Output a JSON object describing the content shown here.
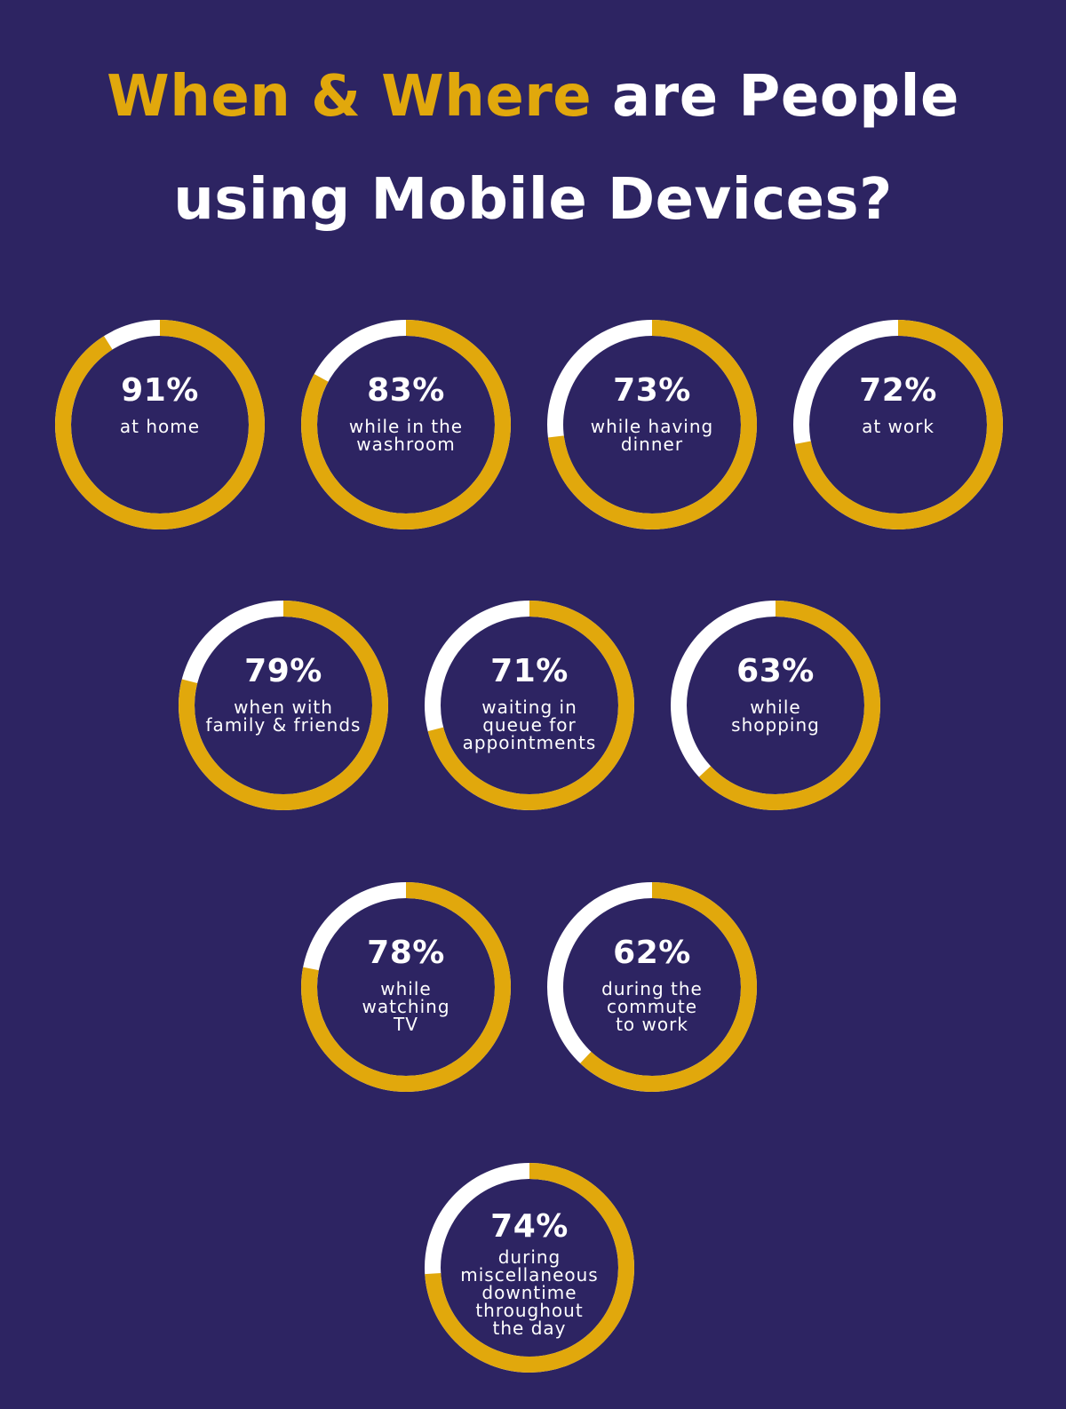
{
  "title": {
    "line1_accent": "When & Where",
    "line1_rest": " are People",
    "line2": "using Mobile Devices?"
  },
  "colors": {
    "background": "#2d2462",
    "accent": "#e1a80c",
    "remainder": "#ffffff"
  },
  "chart_data": {
    "type": "pie",
    "units": "%",
    "items": [
      {
        "value": 91,
        "pct_text": "91%",
        "label": "at home"
      },
      {
        "value": 83,
        "pct_text": "83%",
        "label": "while in the\nwashroom"
      },
      {
        "value": 73,
        "pct_text": "73%",
        "label": "while having\ndinner"
      },
      {
        "value": 72,
        "pct_text": "72%",
        "label": "at work"
      },
      {
        "value": 79,
        "pct_text": "79%",
        "label": "when with\nfamily & friends"
      },
      {
        "value": 71,
        "pct_text": "71%",
        "label": "waiting in\nqueue for\nappointments"
      },
      {
        "value": 63,
        "pct_text": "63%",
        "label": "while\nshopping"
      },
      {
        "value": 78,
        "pct_text": "78%",
        "label": "while\nwatching\nTV"
      },
      {
        "value": 62,
        "pct_text": "62%",
        "label": "during the\ncommute\nto work"
      },
      {
        "value": 74,
        "pct_text": "74%",
        "label": "during\nmiscellaneous\ndowntime\nthroughout\nthe day"
      }
    ]
  }
}
